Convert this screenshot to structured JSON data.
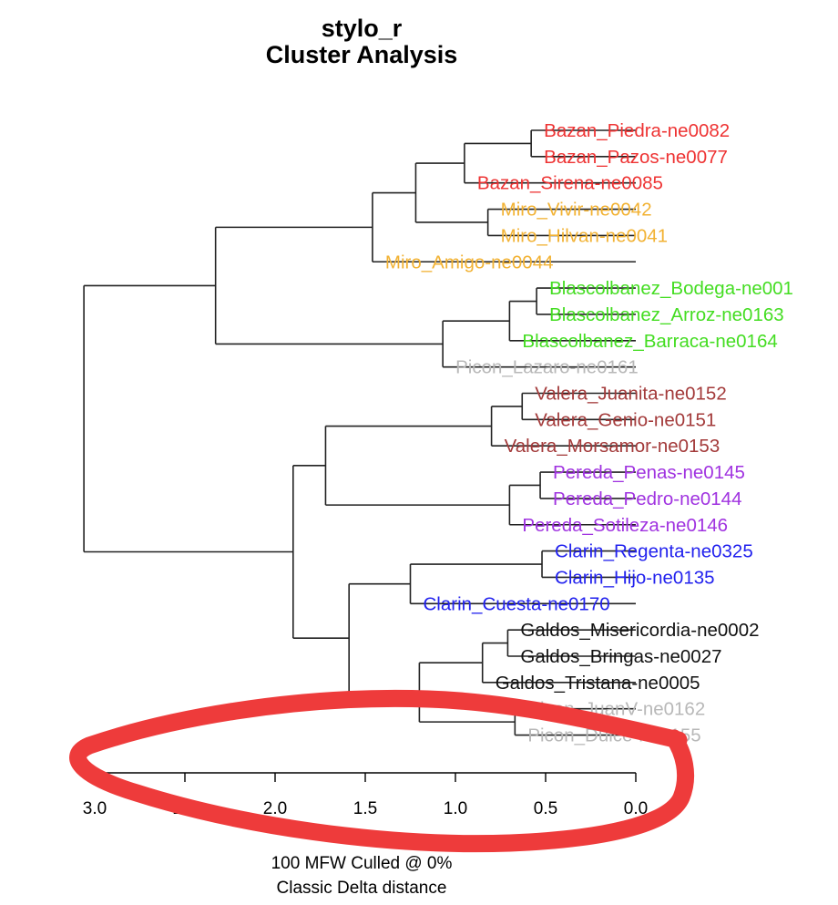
{
  "chart_data": {
    "type": "dendrogram",
    "title": "stylo_r",
    "subtitle": "Cluster Analysis",
    "caption_line1": "100 MFW  Culled @ 0%",
    "caption_line2": "Classic Delta distance",
    "xlim": [
      3.1,
      0.0
    ],
    "ticks": [
      3.0,
      2.5,
      2.0,
      1.5,
      1.0,
      0.5,
      0.0
    ],
    "tick_labels": [
      "3.0",
      "2.5",
      "2.0",
      "1.5",
      "1.0",
      "0.5",
      "0.0"
    ],
    "colors": {
      "Bazan": "#ee3333",
      "Miro": "#f2b233",
      "Blascolbanez": "#44dd22",
      "Picon": "#b8b8b8",
      "Valera": "#a33a3a",
      "Pereda": "#a033e0",
      "Clarin": "#2222ee",
      "Galdos": "#111111"
    },
    "leaves": [
      {
        "label": "Bazan_Piedra-ne0082",
        "group": "Bazan"
      },
      {
        "label": "Bazan_Pazos-ne0077",
        "group": "Bazan"
      },
      {
        "label": "Bazan_Sirena-ne0085",
        "group": "Bazan"
      },
      {
        "label": "Miro_Vivir-ne0042",
        "group": "Miro"
      },
      {
        "label": "Miro_Hilvan-ne0041",
        "group": "Miro"
      },
      {
        "label": "Miro_Amigo-ne0044",
        "group": "Miro"
      },
      {
        "label": "Blascolbanez_Bodega-ne001",
        "group": "Blascolbanez"
      },
      {
        "label": "Blascolbanez_Arroz-ne0163",
        "group": "Blascolbanez"
      },
      {
        "label": "Blascolbanez_Barraca-ne0164",
        "group": "Blascolbanez"
      },
      {
        "label": "Picon_Lazaro-ne0161",
        "group": "Picon"
      },
      {
        "label": "Valera_Juanita-ne0152",
        "group": "Valera"
      },
      {
        "label": "Valera_Genio-ne0151",
        "group": "Valera"
      },
      {
        "label": "Valera_Morsamor-ne0153",
        "group": "Valera"
      },
      {
        "label": "Pereda_Penas-ne0145",
        "group": "Pereda"
      },
      {
        "label": "Pereda_Pedro-ne0144",
        "group": "Pereda"
      },
      {
        "label": "Pereda_Sotileza-ne0146",
        "group": "Pereda"
      },
      {
        "label": "Clarin_Regenta-ne0325",
        "group": "Clarin"
      },
      {
        "label": "Clarin_Hijo-ne0135",
        "group": "Clarin"
      },
      {
        "label": "Clarin_Cuesta-ne0170",
        "group": "Clarin"
      },
      {
        "label": "Galdos_Misericordia-ne0002",
        "group": "Galdos"
      },
      {
        "label": "Galdos_Bringas-ne0027",
        "group": "Galdos"
      },
      {
        "label": "Galdos_Tristana-ne0005",
        "group": "Galdos"
      },
      {
        "label": "Picon_JuanV-ne0162",
        "group": "Picon"
      },
      {
        "label": "Picon_Dulce-ne0155",
        "group": "Picon"
      }
    ],
    "merges": [
      {
        "id": "n1",
        "a": "L0",
        "b": "L1",
        "height": 0.58
      },
      {
        "id": "n2",
        "a": "n1",
        "b": "L2",
        "height": 0.95
      },
      {
        "id": "n3",
        "a": "L3",
        "b": "L4",
        "height": 0.82
      },
      {
        "id": "n4",
        "a": "n2",
        "b": "n3",
        "height": 1.22
      },
      {
        "id": "n5",
        "a": "n4",
        "b": "L5",
        "height": 1.46
      },
      {
        "id": "n6",
        "a": "L6",
        "b": "L7",
        "height": 0.55
      },
      {
        "id": "n7",
        "a": "n6",
        "b": "L8",
        "height": 0.7
      },
      {
        "id": "n8",
        "a": "n7",
        "b": "L9",
        "height": 1.07
      },
      {
        "id": "n9",
        "a": "n5",
        "b": "n8",
        "height": 2.33
      },
      {
        "id": "n10",
        "a": "L10",
        "b": "L11",
        "height": 0.63
      },
      {
        "id": "n11",
        "a": "n10",
        "b": "L12",
        "height": 0.8
      },
      {
        "id": "n12",
        "a": "L13",
        "b": "L14",
        "height": 0.53
      },
      {
        "id": "n13",
        "a": "n12",
        "b": "L15",
        "height": 0.7
      },
      {
        "id": "n14",
        "a": "n11",
        "b": "n13",
        "height": 1.72
      },
      {
        "id": "n15",
        "a": "L16",
        "b": "L17",
        "height": 0.52
      },
      {
        "id": "n16",
        "a": "n15",
        "b": "L18",
        "height": 1.25
      },
      {
        "id": "n17",
        "a": "L19",
        "b": "L20",
        "height": 0.71
      },
      {
        "id": "n18",
        "a": "n17",
        "b": "L21",
        "height": 0.85
      },
      {
        "id": "n19",
        "a": "L22",
        "b": "L23",
        "height": 0.67
      },
      {
        "id": "n20",
        "a": "n18",
        "b": "n19",
        "height": 1.2
      },
      {
        "id": "n21",
        "a": "n16",
        "b": "n20",
        "height": 1.59
      },
      {
        "id": "n22",
        "a": "n14",
        "b": "n21",
        "height": 1.9
      },
      {
        "id": "n23",
        "a": "n9",
        "b": "n22",
        "height": 3.06
      }
    ]
  }
}
